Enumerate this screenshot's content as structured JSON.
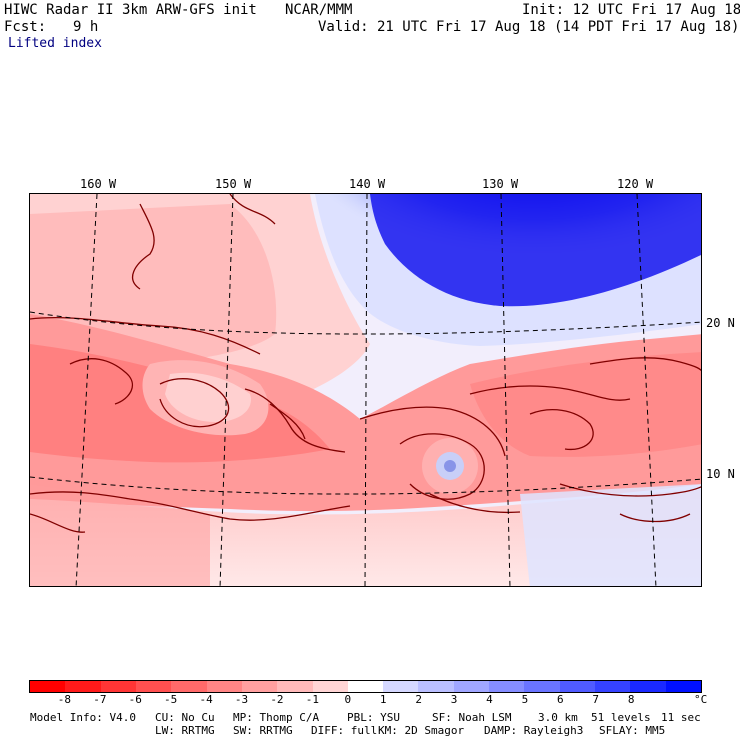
{
  "header": {
    "model_title": "HIWC Radar II 3km ARW-GFS init",
    "org": "NCAR/MMM",
    "init": "Init: 12 UTC Fri 17 Aug 18",
    "fcst_label": "Fcst:",
    "fcst_value": "9 h",
    "valid": "Valid: 21 UTC Fri 17 Aug 18 (14 PDT Fri 17 Aug 18)",
    "field": "Lifted index"
  },
  "map": {
    "lon_labels": [
      "160 W",
      "150 W",
      "140 W",
      "130 W",
      "120 W"
    ],
    "lat_labels": [
      "20 N",
      "10 N"
    ],
    "colors": {
      "strong_stable": "#0000e6",
      "weak_stable": "#dde3ff",
      "neutral": "#ffffff",
      "weak_unstable": "#ffc8c8",
      "unstable": "#ff7070",
      "outline": "#800000"
    }
  },
  "colorbar": {
    "ticks": [
      "-8",
      "-7",
      "-6",
      "-5",
      "-4",
      "-3",
      "-2",
      "-1",
      "0",
      "1",
      "2",
      "3",
      "4",
      "5",
      "6",
      "7",
      "8"
    ],
    "unit": "°C",
    "colors": [
      "#ff0000",
      "#ff1a1a",
      "#ff3535",
      "#ff5050",
      "#ff6a6a",
      "#ff8585",
      "#ffa0a0",
      "#ffbaba",
      "#ffd5d5",
      "#ffffff",
      "#d5d8ff",
      "#babfff",
      "#a0a6ff",
      "#858dff",
      "#6a74ff",
      "#505bff",
      "#3542ff",
      "#1a29ff",
      "#0010ff"
    ]
  },
  "footer": {
    "line1": {
      "model_info": "Model Info: V4.0",
      "cu": "CU: No Cu",
      "mp": "MP: Thomp C/A",
      "pbl": "PBL: YSU",
      "sf": "SF: Noah LSM",
      "res": "3.0 km",
      "levels": "51 levels",
      "sec": "11 sec"
    },
    "line2": {
      "lw": "LW: RRTMG",
      "sw": "SW: RRTMG",
      "diff": "DIFF: full",
      "km": "KM: 2D Smagor",
      "damp": "DAMP: Rayleigh3",
      "sflay": "SFLAY: MM5"
    }
  }
}
